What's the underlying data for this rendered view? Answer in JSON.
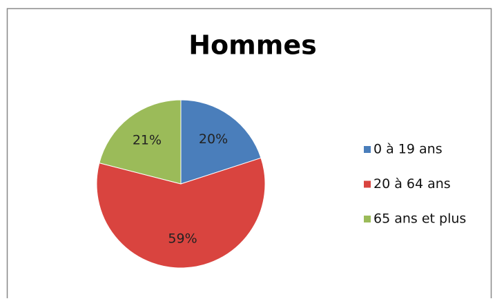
{
  "chart_data": {
    "type": "pie",
    "title": "Hommes",
    "categories": [
      "0 à 19 ans",
      "20 à 64 ans",
      "65 ans et plus"
    ],
    "values": [
      20,
      59,
      21
    ],
    "value_labels": [
      "20%",
      "59%",
      "21%"
    ],
    "colors": [
      "#4a7ebb",
      "#d9443f",
      "#9bbb59"
    ],
    "legend": "right"
  }
}
